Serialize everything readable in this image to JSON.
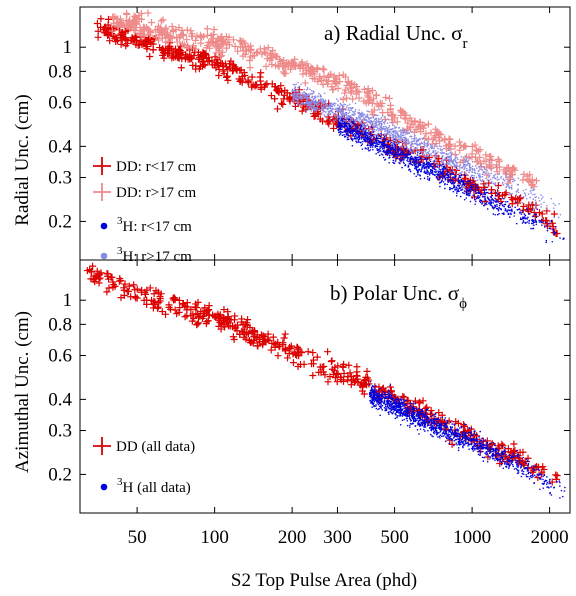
{
  "chart_data": [
    {
      "type": "scatter",
      "panel_label": "a)",
      "title": "a) Radial Unc. σ",
      "title_subscript": "r",
      "xlabel": "",
      "ylabel": "Radial Unc. (cm)",
      "xscale": "log",
      "yscale": "log",
      "xlim": [
        30,
        2400
      ],
      "ylim": [
        0.14,
        1.45
      ],
      "x_ticks": [],
      "y_ticks": [
        0.2,
        0.3,
        0.4,
        0.6,
        0.8,
        1
      ],
      "y_tick_labels": [
        "0.2",
        "0.3",
        "0.4",
        "0.6",
        "0.8",
        "1"
      ],
      "grid": false,
      "legend_position": "left",
      "series": [
        {
          "name": "DD: r<17 cm",
          "marker": "+",
          "color": "#dd0000",
          "trend": [
            [
              35,
              1.2
            ],
            [
              60,
              1.0
            ],
            [
              100,
              0.85
            ],
            [
              200,
              0.62
            ],
            [
              400,
              0.45
            ],
            [
              700,
              0.34
            ],
            [
              1000,
              0.28
            ],
            [
              1500,
              0.24
            ],
            [
              2200,
              0.19
            ]
          ]
        },
        {
          "name": "DD: r>17 cm",
          "marker": "+",
          "color": "#ef8a8a",
          "trend": [
            [
              40,
              1.3
            ],
            [
              80,
              1.1
            ],
            [
              150,
              0.95
            ],
            [
              300,
              0.72
            ],
            [
              500,
              0.55
            ],
            [
              800,
              0.42
            ],
            [
              1200,
              0.34
            ],
            [
              1800,
              0.28
            ]
          ]
        },
        {
          "name": "H:  r<17 cm",
          "name_superscript": "3",
          "marker": "dot",
          "color": "#0000dd",
          "trend": [
            [
              300,
              0.5
            ],
            [
              500,
              0.38
            ],
            [
              800,
              0.3
            ],
            [
              1200,
              0.24
            ],
            [
              1800,
              0.2
            ],
            [
              2300,
              0.17
            ]
          ]
        },
        {
          "name": "H:  r>17 cm",
          "name_superscript": "3",
          "marker": "dot",
          "color": "#8a8ae6",
          "trend": [
            [
              200,
              0.65
            ],
            [
              400,
              0.5
            ],
            [
              700,
              0.38
            ],
            [
              1000,
              0.32
            ],
            [
              1500,
              0.27
            ],
            [
              2300,
              0.22
            ]
          ]
        }
      ]
    },
    {
      "type": "scatter",
      "panel_label": "b)",
      "title": "b) Polar Unc. σ",
      "title_subscript": "ϕ",
      "xlabel": "S2 Top Pulse Area (phd)",
      "ylabel": "Azimuthal Unc. (cm)",
      "xscale": "log",
      "yscale": "log",
      "xlim": [
        30,
        2400
      ],
      "ylim": [
        0.14,
        1.45
      ],
      "x_ticks": [
        50,
        100,
        200,
        300,
        500,
        1000,
        2000
      ],
      "x_tick_labels": [
        "50",
        "100",
        "200",
        "300",
        "500",
        "1000",
        "2000"
      ],
      "y_ticks": [
        0.2,
        0.3,
        0.4,
        0.6,
        0.8,
        1
      ],
      "y_tick_labels": [
        "0.2",
        "0.3",
        "0.4",
        "0.6",
        "0.8",
        "1"
      ],
      "grid": false,
      "legend_position": "left",
      "series": [
        {
          "name": "DD (all data)",
          "marker": "+",
          "color": "#dd0000",
          "trend": [
            [
              32,
              1.3
            ],
            [
              60,
              1.0
            ],
            [
              100,
              0.85
            ],
            [
              200,
              0.62
            ],
            [
              400,
              0.45
            ],
            [
              700,
              0.34
            ],
            [
              1000,
              0.28
            ],
            [
              1500,
              0.23
            ],
            [
              2200,
              0.19
            ]
          ]
        },
        {
          "name": "H (all data)",
          "name_superscript": "3",
          "marker": "dot",
          "color": "#0000dd",
          "trend": [
            [
              400,
              0.42
            ],
            [
              700,
              0.32
            ],
            [
              1000,
              0.27
            ],
            [
              1500,
              0.22
            ],
            [
              2300,
              0.17
            ]
          ]
        }
      ]
    }
  ]
}
